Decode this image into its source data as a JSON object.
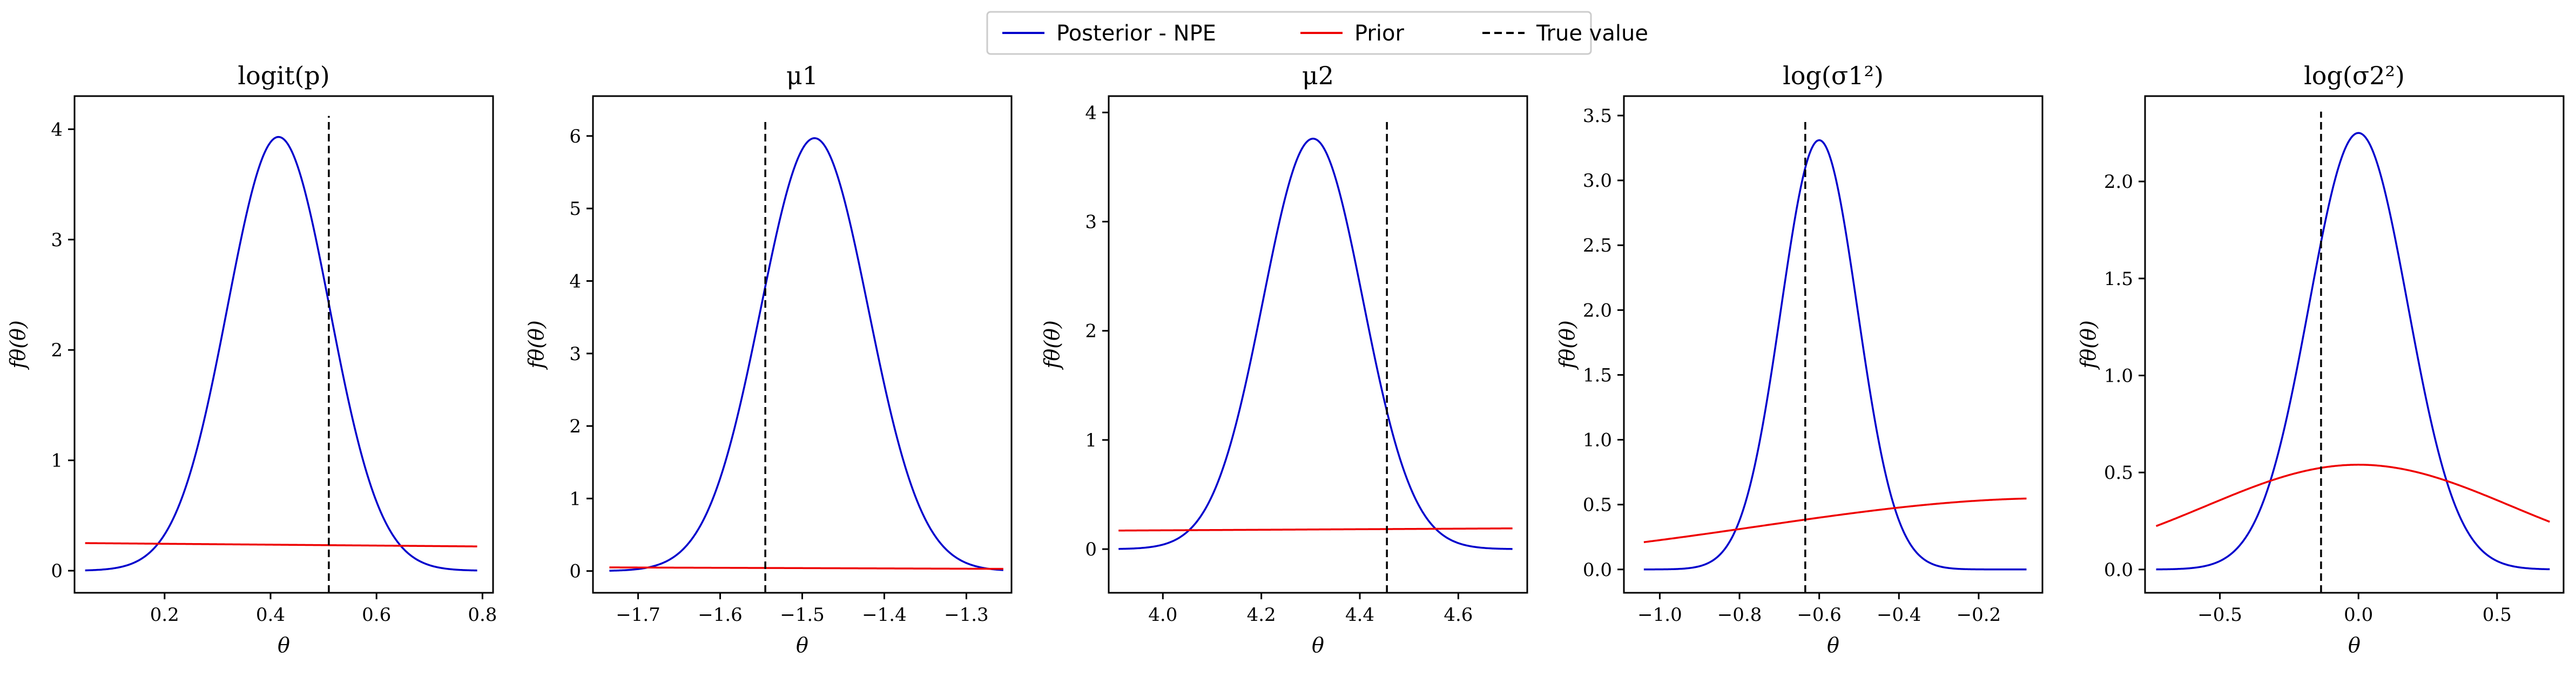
{
  "legend": {
    "placement": "top-center",
    "entries": [
      {
        "label": "Posterior - NPE",
        "color": "#0000cc",
        "style": "solid"
      },
      {
        "label": "Prior",
        "color": "#ee0000",
        "style": "solid"
      },
      {
        "label": "True value",
        "color": "#000000",
        "style": "dashed"
      }
    ]
  },
  "chart_data": [
    {
      "type": "line",
      "title": "logit(p)",
      "xlabel": "θ",
      "ylabel": "fθ(θ)",
      "xlim": [
        0.03,
        0.82
      ],
      "ylim": [
        -0.2,
        4.3
      ],
      "xticks": [
        0.2,
        0.4,
        0.6,
        0.8
      ],
      "xtick_labels": [
        "0.2",
        "0.4",
        "0.6",
        "0.8"
      ],
      "yticks": [
        0,
        1,
        2,
        3,
        4
      ],
      "ytick_labels": [
        "0",
        "1",
        "2",
        "3",
        "4"
      ],
      "grid": false,
      "series": [
        {
          "name": "Posterior - NPE",
          "color": "#0000cc",
          "x_range": [
            0.05,
            0.79
          ],
          "gaussian": {
            "mean": 0.415,
            "sd": 0.0965,
            "peak": 3.93,
            "offset": 0
          }
        },
        {
          "name": "Prior",
          "color": "#ee0000",
          "x_range": [
            0.05,
            0.79
          ],
          "line": {
            "y_start": 0.25,
            "y_end": 0.22
          }
        }
      ],
      "true_value": {
        "x": 0.51,
        "y_range": [
          -0.2,
          4.12
        ]
      }
    },
    {
      "type": "line",
      "title": "μ1",
      "xlabel": "θ",
      "ylabel": "fθ(θ)",
      "xlim": [
        -1.755,
        -1.245
      ],
      "ylim": [
        -0.3,
        6.55
      ],
      "xticks": [
        -1.7,
        -1.6,
        -1.5,
        -1.4,
        -1.3
      ],
      "xtick_labels": [
        "−1.7",
        "−1.6",
        "−1.5",
        "−1.4",
        "−1.3"
      ],
      "yticks": [
        0,
        1,
        2,
        3,
        4,
        5,
        6
      ],
      "ytick_labels": [
        "0",
        "1",
        "2",
        "3",
        "4",
        "5",
        "6"
      ],
      "grid": false,
      "series": [
        {
          "name": "Posterior - NPE",
          "color": "#0000cc",
          "x_range": [
            -1.735,
            -1.255
          ],
          "gaussian": {
            "mean": -1.485,
            "sd": 0.0655,
            "peak": 5.97,
            "offset": 0
          }
        },
        {
          "name": "Prior",
          "color": "#ee0000",
          "x_range": [
            -1.735,
            -1.255
          ],
          "line": {
            "y_start": 0.05,
            "y_end": 0.03
          }
        }
      ],
      "true_value": {
        "x": -1.545,
        "y_range": [
          -0.3,
          6.22
        ]
      }
    },
    {
      "type": "line",
      "title": "μ2",
      "xlabel": "θ",
      "ylabel": "fθ(θ)",
      "xlim": [
        3.89,
        4.74
      ],
      "ylim": [
        -0.4,
        4.15
      ],
      "xticks": [
        4.0,
        4.2,
        4.4,
        4.6
      ],
      "xtick_labels": [
        "4.0",
        "4.2",
        "4.4",
        "4.6"
      ],
      "yticks": [
        0,
        1,
        2,
        3,
        4
      ],
      "ytick_labels": [
        "0",
        "1",
        "2",
        "3",
        "4"
      ],
      "grid": false,
      "series": [
        {
          "name": "Posterior - NPE",
          "color": "#0000cc",
          "x_range": [
            3.91,
            4.71
          ],
          "gaussian": {
            "mean": 4.305,
            "sd": 0.1015,
            "peak": 3.76,
            "offset": 0
          }
        },
        {
          "name": "Prior",
          "color": "#ee0000",
          "x_range": [
            3.91,
            4.71
          ],
          "line": {
            "y_start": 0.17,
            "y_end": 0.19
          }
        }
      ],
      "true_value": {
        "x": 4.455,
        "y_range": [
          -0.4,
          3.92
        ]
      }
    },
    {
      "type": "line",
      "title": "log(σ1²)",
      "xlabel": "θ",
      "ylabel": "fθ(θ)",
      "xlim": [
        -1.09,
        -0.04
      ],
      "ylim": [
        -0.18,
        3.65
      ],
      "xticks": [
        -1.0,
        -0.8,
        -0.6,
        -0.4,
        -0.2
      ],
      "xtick_labels": [
        "−1.0",
        "−0.8",
        "−0.6",
        "−0.4",
        "−0.2"
      ],
      "yticks": [
        0.0,
        0.5,
        1.0,
        1.5,
        2.0,
        2.5,
        3.0,
        3.5
      ],
      "ytick_labels": [
        "0.0",
        "0.5",
        "1.0",
        "1.5",
        "2.0",
        "2.5",
        "3.0",
        "3.5"
      ],
      "grid": false,
      "series": [
        {
          "name": "Posterior - NPE",
          "color": "#0000cc",
          "x_range": [
            -1.04,
            -0.08
          ],
          "gaussian": {
            "mean": -0.6,
            "sd": 0.096,
            "peak": 3.31,
            "offset": 0
          }
        },
        {
          "name": "Prior",
          "color": "#ee0000",
          "x_range": [
            -1.04,
            -0.08
          ],
          "gaussian": {
            "mean": 0.0,
            "sd": 0.75,
            "peak": 0.55,
            "offset": 0
          }
        }
      ],
      "true_value": {
        "x": -0.635,
        "y_range": [
          -0.18,
          3.45
        ]
      }
    },
    {
      "type": "line",
      "title": "log(σ2²)",
      "xlabel": "θ",
      "ylabel": "fθ(θ)",
      "xlim": [
        -0.77,
        0.74
      ],
      "ylim": [
        -0.12,
        2.44
      ],
      "xticks": [
        -0.5,
        0.0,
        0.5
      ],
      "xtick_labels": [
        "−0.5",
        "0.0",
        "0.5"
      ],
      "yticks": [
        0.0,
        0.5,
        1.0,
        1.5,
        2.0
      ],
      "ytick_labels": [
        "0.0",
        "0.5",
        "1.0",
        "1.5",
        "2.0"
      ],
      "grid": false,
      "series": [
        {
          "name": "Posterior - NPE",
          "color": "#0000cc",
          "x_range": [
            -0.73,
            0.69
          ],
          "gaussian": {
            "mean": 0.0,
            "sd": 0.178,
            "peak": 2.25,
            "offset": 0
          }
        },
        {
          "name": "Prior",
          "color": "#ee0000",
          "x_range": [
            -0.73,
            0.69
          ],
          "gaussian": {
            "mean": 0.0,
            "sd": 0.55,
            "peak": 0.54,
            "offset": 0
          }
        }
      ],
      "true_value": {
        "x": -0.135,
        "y_range": [
          -0.12,
          2.36
        ]
      }
    }
  ]
}
